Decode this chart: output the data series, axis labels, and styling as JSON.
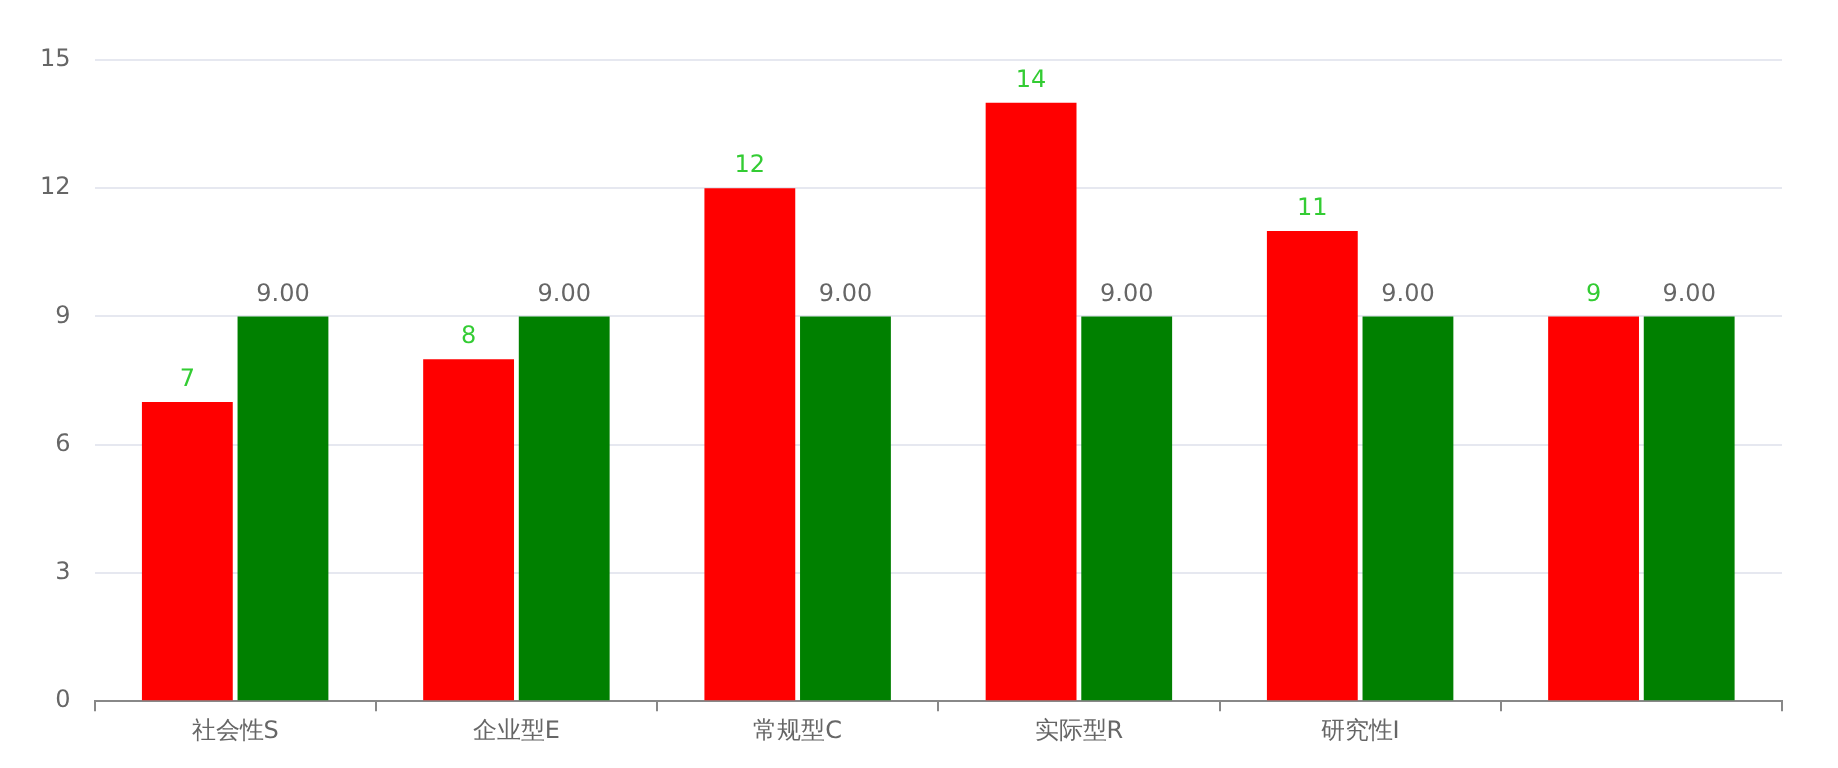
{
  "chart_data": {
    "type": "bar",
    "categories": [
      "社会性S",
      "企业型E",
      "常规型C",
      "实际型R",
      "研究性I",
      null
    ],
    "series": [
      {
        "color": "#ff0000",
        "values": [
          7,
          8,
          12,
          14,
          11,
          9
        ],
        "value_labels": [
          "7",
          "8",
          "12",
          "14",
          "11",
          "9"
        ]
      },
      {
        "color": "#008000",
        "values": [
          9,
          9,
          9,
          9,
          9,
          9
        ],
        "value_labels": [
          "9.00",
          "9.00",
          "9.00",
          "9.00",
          "9.00",
          "9.00"
        ]
      }
    ],
    "ylim": [
      0,
      15
    ],
    "yticks": [
      0,
      3,
      6,
      9,
      12,
      15
    ],
    "grid": "y",
    "legend": false
  }
}
